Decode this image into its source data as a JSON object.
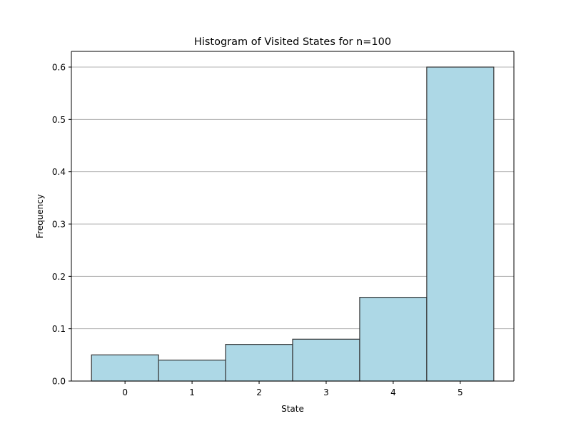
{
  "chart_data": {
    "type": "bar",
    "title": "Histogram of Visited States for n=100",
    "xlabel": "State",
    "ylabel": "Frequency",
    "categories": [
      "0",
      "1",
      "2",
      "3",
      "4",
      "5"
    ],
    "values": [
      0.05,
      0.04,
      0.07,
      0.08,
      0.16,
      0.6
    ],
    "xlim": [
      -0.8,
      5.8
    ],
    "ylim": [
      0,
      0.63
    ],
    "yticks": [
      "0.0",
      "0.1",
      "0.2",
      "0.3",
      "0.4",
      "0.5",
      "0.6"
    ],
    "grid": "y-axis major",
    "bar_color": "#add8e6",
    "bar_edge_color": "#333333",
    "grid_color": "#b0b0b0"
  }
}
